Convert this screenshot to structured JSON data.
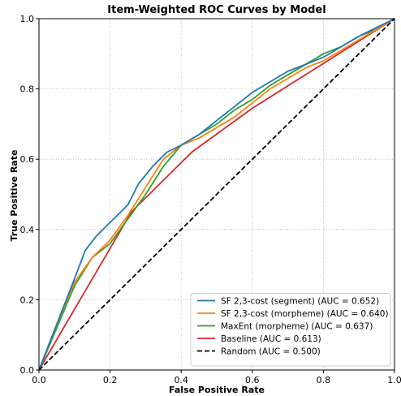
{
  "chart_data": {
    "type": "line",
    "title": "Item-Weighted ROC Curves by Model",
    "xlabel": "False Positive Rate",
    "ylabel": "True Positive Rate",
    "xlim": [
      0.0,
      1.0
    ],
    "ylim": [
      0.0,
      1.0
    ],
    "x_ticks": [
      "0.0",
      "0.2",
      "0.4",
      "0.6",
      "0.8",
      "1.0"
    ],
    "y_ticks": [
      "0.0",
      "0.2",
      "0.4",
      "0.6",
      "0.8",
      "1.0"
    ],
    "grid": true,
    "legend_position": "lower-right",
    "series": [
      {
        "name": "SF 2,3-cost (segment) (AUC = 0.652)",
        "color": "#1f77b4",
        "style": "solid",
        "x": [
          0.0,
          0.05,
          0.1,
          0.13,
          0.16,
          0.2,
          0.25,
          0.28,
          0.32,
          0.36,
          0.4,
          0.45,
          0.5,
          0.55,
          0.6,
          0.65,
          0.7,
          0.75,
          0.8,
          0.85,
          0.9,
          0.95,
          1.0
        ],
        "y": [
          0.0,
          0.13,
          0.26,
          0.34,
          0.38,
          0.42,
          0.47,
          0.53,
          0.58,
          0.62,
          0.64,
          0.67,
          0.71,
          0.75,
          0.79,
          0.82,
          0.85,
          0.87,
          0.89,
          0.92,
          0.95,
          0.975,
          1.0
        ]
      },
      {
        "name": "SF 2,3-cost (morpheme) (AUC = 0.640)",
        "color": "#ff7f0e",
        "style": "solid",
        "x": [
          0.0,
          0.05,
          0.1,
          0.15,
          0.2,
          0.25,
          0.3,
          0.35,
          0.4,
          0.45,
          0.5,
          0.55,
          0.6,
          0.65,
          0.7,
          0.75,
          0.8,
          0.85,
          0.9,
          0.95,
          1.0
        ],
        "y": [
          0.0,
          0.13,
          0.25,
          0.32,
          0.37,
          0.44,
          0.52,
          0.6,
          0.64,
          0.66,
          0.69,
          0.72,
          0.76,
          0.8,
          0.83,
          0.86,
          0.88,
          0.91,
          0.94,
          0.97,
          1.0
        ]
      },
      {
        "name": "MaxEnt (morpheme) (AUC = 0.637)",
        "color": "#2ca02c",
        "style": "solid",
        "x": [
          0.0,
          0.05,
          0.1,
          0.15,
          0.2,
          0.25,
          0.3,
          0.35,
          0.4,
          0.45,
          0.5,
          0.55,
          0.6,
          0.65,
          0.7,
          0.75,
          0.8,
          0.85,
          0.9,
          0.95,
          1.0
        ],
        "y": [
          0.0,
          0.12,
          0.24,
          0.32,
          0.36,
          0.43,
          0.5,
          0.58,
          0.64,
          0.67,
          0.7,
          0.74,
          0.77,
          0.81,
          0.84,
          0.87,
          0.9,
          0.92,
          0.95,
          0.97,
          1.0
        ]
      },
      {
        "name": "Baseline (AUC = 0.613)",
        "color": "#d62728",
        "style": "solid",
        "x": [
          0.0,
          0.26,
          0.43,
          0.6,
          1.0
        ],
        "y": [
          0.0,
          0.45,
          0.62,
          0.745,
          1.0
        ]
      },
      {
        "name": "Random (AUC = 0.500)",
        "color": "#000000",
        "style": "dashed",
        "x": [
          0.0,
          1.0
        ],
        "y": [
          0.0,
          1.0
        ]
      }
    ]
  }
}
